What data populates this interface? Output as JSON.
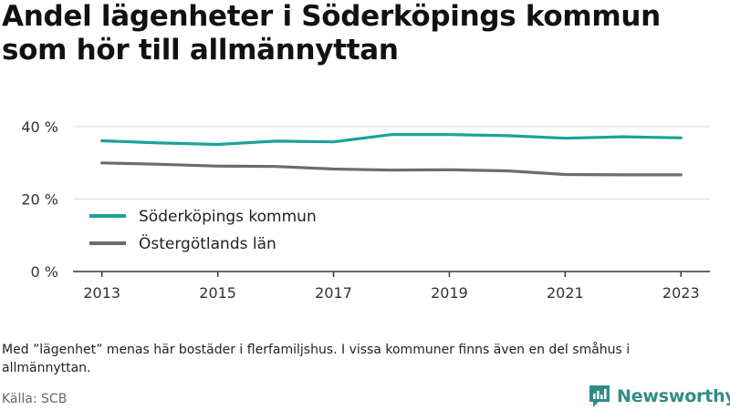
{
  "title": "Andel lägenheter i Söderköpings kommun som hör till allmännyttan",
  "note": "Med ”lägenhet” menas här bostäder i flerfamiljshus. I vissa kommuner finns även en del småhus i allmännyttan.",
  "source": "Källa: SCB",
  "brand": {
    "name": "Newsworthy",
    "color": "#2f8d86"
  },
  "chart_data": {
    "type": "line",
    "x": [
      2013,
      2014,
      2015,
      2016,
      2017,
      2018,
      2019,
      2020,
      2021,
      2022,
      2023
    ],
    "x_tick_labels": [
      "2013",
      "2015",
      "2017",
      "2019",
      "2021",
      "2023"
    ],
    "y_tick_labels": [
      "0 %",
      "20 %",
      "40 %"
    ],
    "y_ticks": [
      0,
      20,
      40
    ],
    "ylim": [
      0,
      40
    ],
    "xlim": [
      2012.5,
      2023.5
    ],
    "grid": true,
    "legend_position": "lower-left",
    "series": [
      {
        "name": "Söderköpings kommun",
        "color": "#1aa39a",
        "values": [
          36.1,
          35.5,
          35.1,
          36.0,
          35.8,
          37.8,
          37.8,
          37.5,
          36.8,
          37.2,
          36.9
        ]
      },
      {
        "name": "Östergötlands län",
        "color": "#6b6b70",
        "values": [
          30.0,
          29.6,
          29.1,
          29.0,
          28.3,
          28.0,
          28.1,
          27.8,
          26.8,
          26.7,
          26.7
        ]
      }
    ]
  }
}
